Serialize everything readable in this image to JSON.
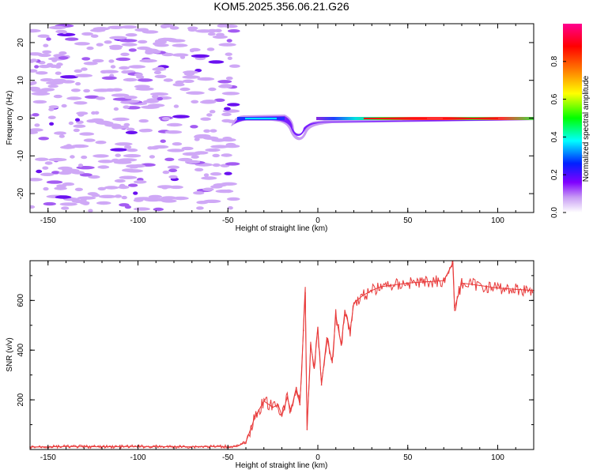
{
  "figure_title": "KOM5.2025.356.06.21.G26",
  "chart_data": [
    {
      "type": "heatmap",
      "title": "KOM5.2025.356.06.21.G26",
      "xlabel": "Height of straight line (km)",
      "ylabel": "Frequency (Hz)",
      "xlim": [
        -160,
        120
      ],
      "ylim": [
        -25,
        25
      ],
      "xticks": [
        -150,
        -100,
        -50,
        0,
        50,
        100
      ],
      "yticks": [
        -20,
        -10,
        0,
        10,
        20
      ],
      "colorbar": {
        "label": "Normalized spectral amplitude",
        "range": [
          0.0,
          1.0
        ],
        "ticks": [
          0.0,
          0.2,
          0.4,
          0.6,
          0.8
        ],
        "colors": [
          "#ffffff",
          "#c89cf4",
          "#8000ff",
          "#0020ff",
          "#00ffff",
          "#00ff00",
          "#ffff00",
          "#ff8000",
          "#ff0000",
          "#ff0090"
        ]
      },
      "regions": [
        {
          "x_range": [
            -160,
            -46
          ],
          "description": "scattered low-amplitude noise 0.1–0.4"
        },
        {
          "x_range": [
            -46,
            0
          ],
          "freq": 0,
          "amplitude": "0.3–0.5, broadened near -10 km"
        },
        {
          "x_range": [
            0,
            120
          ],
          "freq": 0,
          "amplitude": "0.6–0.95 narrow line"
        }
      ]
    },
    {
      "type": "line",
      "xlabel": "Height of straight line (km)",
      "ylabel": "SNR (v/v)",
      "xlim": [
        -160,
        120
      ],
      "ylim": [
        0,
        760
      ],
      "xticks": [
        -150,
        -100,
        -50,
        0,
        50,
        100
      ],
      "yticks": [
        200,
        400,
        600
      ],
      "series": [
        {
          "name": "SNR",
          "color": "#e83a3a",
          "x": [
            -160,
            -140,
            -120,
            -100,
            -80,
            -60,
            -45,
            -40,
            -35,
            -30,
            -25,
            -22,
            -20,
            -17,
            -15,
            -12,
            -10,
            -8,
            -7,
            -6,
            -4,
            -2,
            0,
            2,
            5,
            8,
            10,
            13,
            15,
            18,
            20,
            25,
            30,
            35,
            40,
            50,
            60,
            70,
            75,
            76,
            80,
            90,
            100,
            110,
            120
          ],
          "values": [
            10,
            12,
            11,
            12,
            11,
            12,
            12,
            30,
            130,
            195,
            170,
            180,
            135,
            210,
            155,
            250,
            180,
            480,
            630,
            80,
            420,
            330,
            490,
            260,
            450,
            350,
            540,
            420,
            560,
            480,
            590,
            620,
            640,
            655,
            660,
            670,
            675,
            680,
            750,
            570,
            670,
            660,
            650,
            645,
            640
          ]
        }
      ]
    }
  ]
}
